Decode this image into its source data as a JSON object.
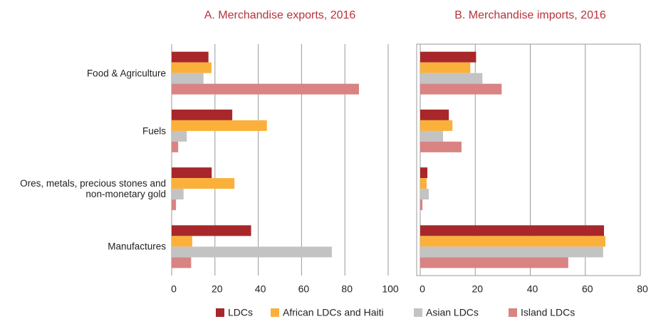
{
  "chart_data": [
    {
      "type": "hbar",
      "title": "A. Merchandise exports, 2016",
      "categories": [
        "Food & Agriculture",
        "Fuels",
        "Ores, metals, precious stones and non-monetary gold",
        "Manufactures"
      ],
      "series": [
        {
          "name": "LDCs",
          "color": "#a8272a",
          "values": [
            17,
            28,
            18.5,
            36.7
          ]
        },
        {
          "name": "African LDCs and Haiti",
          "color": "#fbb03b",
          "values": [
            18.4,
            44,
            29,
            9.5
          ]
        },
        {
          "name": "Asian LDCs",
          "color": "#c3c3c3",
          "values": [
            14.7,
            7,
            5.5,
            74
          ]
        },
        {
          "name": "Island LDCs",
          "color": "#d98383",
          "values": [
            86.5,
            3,
            2,
            9
          ]
        }
      ],
      "xlim": [
        0,
        100
      ],
      "xticks": [
        0,
        20,
        40,
        60,
        80,
        100
      ],
      "grid": true,
      "legend": "bottom"
    },
    {
      "type": "hbar",
      "title": "B. Merchandise imports, 2016",
      "categories": [
        null,
        null,
        null,
        null
      ],
      "series": [
        {
          "color": "#a8272a",
          "values": [
            20.3,
            10.4,
            2.6,
            66.8
          ]
        },
        {
          "color": "#fbb03b",
          "values": [
            18.2,
            11.7,
            2.3,
            67.3
          ]
        },
        {
          "color": "#c3c3c3",
          "values": [
            22.6,
            8.3,
            3.1,
            66.5
          ]
        },
        {
          "color": "#d98383",
          "values": [
            29.6,
            15,
            0.8,
            53.8
          ]
        }
      ],
      "xlim": [
        0,
        80
      ],
      "xticks": [
        0,
        20,
        40,
        60,
        80
      ],
      "grid": true
    }
  ]
}
